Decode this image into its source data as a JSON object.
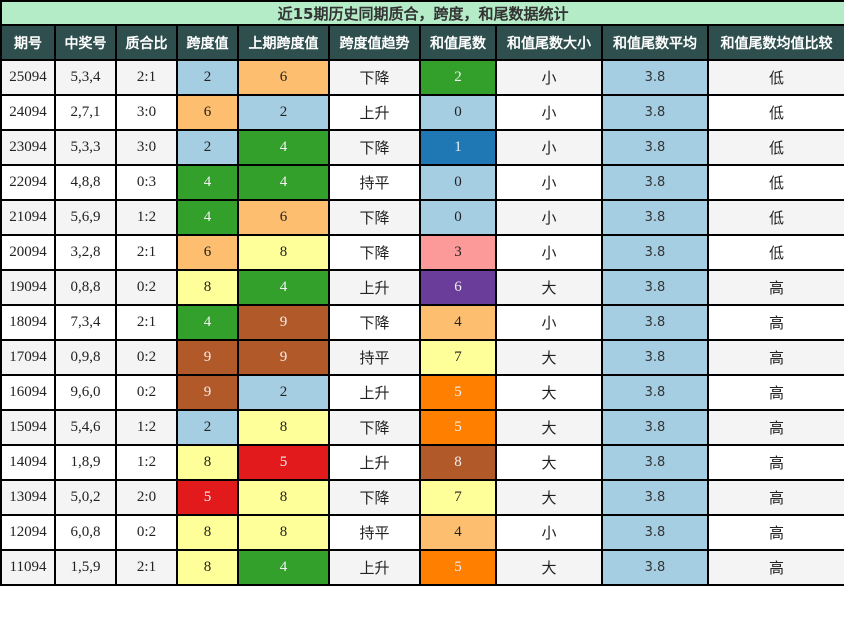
{
  "title": "近15期历史同期质合，跨度，和尾数据统计",
  "headers": [
    "期号",
    "中奖号",
    "质合比",
    "跨度值",
    "上期跨度值",
    "跨度值趋势",
    "和值尾数",
    "和值尾数大小",
    "和值尾数平均",
    "和值尾数均值比较"
  ],
  "digit_colors": {
    "0": "#a6cee3",
    "1": "#1f78b4",
    "2": "#a6cee3",
    "3": "#fb9a99",
    "4": "#33a02c",
    "5": "#e31a1c",
    "6": "#fdbf6f",
    "7": "#ffff99",
    "8": "#ffff99",
    "9": "#b15928"
  },
  "rows": [
    {
      "period": "25094",
      "numbers": "5,3,4",
      "ratio": "2:1",
      "span": "2",
      "prev_span": "6",
      "trend": "下降",
      "tail": "2",
      "tail_size": "小",
      "tail_avg": "3.8",
      "compare": "低"
    },
    {
      "period": "24094",
      "numbers": "2,7,1",
      "ratio": "3:0",
      "span": "6",
      "prev_span": "2",
      "trend": "上升",
      "tail": "0",
      "tail_size": "小",
      "tail_avg": "3.8",
      "compare": "低"
    },
    {
      "period": "23094",
      "numbers": "5,3,3",
      "ratio": "3:0",
      "span": "2",
      "prev_span": "4",
      "trend": "下降",
      "tail": "1",
      "tail_size": "小",
      "tail_avg": "3.8",
      "compare": "低"
    },
    {
      "period": "22094",
      "numbers": "4,8,8",
      "ratio": "0:3",
      "span": "4",
      "prev_span": "4",
      "trend": "持平",
      "tail": "0",
      "tail_size": "小",
      "tail_avg": "3.8",
      "compare": "低"
    },
    {
      "period": "21094",
      "numbers": "5,6,9",
      "ratio": "1:2",
      "span": "4",
      "prev_span": "6",
      "trend": "下降",
      "tail": "0",
      "tail_size": "小",
      "tail_avg": "3.8",
      "compare": "低"
    },
    {
      "period": "20094",
      "numbers": "3,2,8",
      "ratio": "2:1",
      "span": "6",
      "prev_span": "8",
      "trend": "下降",
      "tail": "3",
      "tail_size": "小",
      "tail_avg": "3.8",
      "compare": "低"
    },
    {
      "period": "19094",
      "numbers": "0,8,8",
      "ratio": "0:2",
      "span": "8",
      "prev_span": "4",
      "trend": "上升",
      "tail": "6",
      "tail_size": "大",
      "tail_avg": "3.8",
      "compare": "高"
    },
    {
      "period": "18094",
      "numbers": "7,3,4",
      "ratio": "2:1",
      "span": "4",
      "prev_span": "9",
      "trend": "下降",
      "tail": "4",
      "tail_size": "小",
      "tail_avg": "3.8",
      "compare": "高"
    },
    {
      "period": "17094",
      "numbers": "0,9,8",
      "ratio": "0:2",
      "span": "9",
      "prev_span": "9",
      "trend": "持平",
      "tail": "7",
      "tail_size": "大",
      "tail_avg": "3.8",
      "compare": "高"
    },
    {
      "period": "16094",
      "numbers": "9,6,0",
      "ratio": "0:2",
      "span": "9",
      "prev_span": "2",
      "trend": "上升",
      "tail": "5",
      "tail_size": "大",
      "tail_avg": "3.8",
      "compare": "高"
    },
    {
      "period": "15094",
      "numbers": "5,4,6",
      "ratio": "1:2",
      "span": "2",
      "prev_span": "8",
      "trend": "下降",
      "tail": "5",
      "tail_size": "大",
      "tail_avg": "3.8",
      "compare": "高"
    },
    {
      "period": "14094",
      "numbers": "1,8,9",
      "ratio": "1:2",
      "span": "8",
      "prev_span": "5",
      "trend": "上升",
      "tail": "8",
      "tail_size": "大",
      "tail_avg": "3.8",
      "compare": "高"
    },
    {
      "period": "13094",
      "numbers": "5,0,2",
      "ratio": "2:0",
      "span": "5",
      "prev_span": "8",
      "trend": "下降",
      "tail": "7",
      "tail_size": "大",
      "tail_avg": "3.8",
      "compare": "高"
    },
    {
      "period": "12094",
      "numbers": "6,0,8",
      "ratio": "0:2",
      "span": "8",
      "prev_span": "8",
      "trend": "持平",
      "tail": "4",
      "tail_size": "小",
      "tail_avg": "3.8",
      "compare": "高"
    },
    {
      "period": "11094",
      "numbers": "1,5,9",
      "ratio": "2:1",
      "span": "8",
      "prev_span": "4",
      "trend": "上升",
      "tail": "5",
      "tail_size": "大",
      "tail_avg": "3.8",
      "compare": "高"
    }
  ],
  "cell_colors": {
    "span": [
      "#a6cee3",
      "#fdbf6f",
      "#a6cee3",
      "#33a02c",
      "#33a02c",
      "#fdbf6f",
      "#ffff99",
      "#33a02c",
      "#b15928",
      "#b15928",
      "#a6cee3",
      "#ffff99",
      "#e31a1c",
      "#ffff99",
      "#ffff99"
    ],
    "prev_span": [
      "#fdbf6f",
      "#a6cee3",
      "#33a02c",
      "#33a02c",
      "#fdbf6f",
      "#ffff99",
      "#33a02c",
      "#b15928",
      "#b15928",
      "#a6cee3",
      "#ffff99",
      "#e31a1c",
      "#ffff99",
      "#ffff99",
      "#33a02c"
    ],
    "tail": [
      "#33a02c",
      "#a6cee3",
      "#1f78b4",
      "#a6cee3",
      "#a6cee3",
      "#fb9a99",
      "#6a3d9a",
      "#fdbf6f",
      "#ffff99",
      "#ff7f00",
      "#ff7f00",
      "#b15928",
      "#ffff99",
      "#fdbf6f",
      "#ff7f00"
    ],
    "tail_avg": "#a6cee3"
  },
  "chart_data": {
    "type": "table",
    "title": "近15期历史同期质合，跨度，和尾数据统计",
    "columns": [
      "期号",
      "中奖号",
      "质合比",
      "跨度值",
      "上期跨度值",
      "跨度值趋势",
      "和值尾数",
      "和值尾数大小",
      "和值尾数平均",
      "和值尾数均值比较"
    ],
    "rows": [
      [
        "25094",
        "5,3,4",
        "2:1",
        2,
        6,
        "下降",
        2,
        "小",
        3.8,
        "低"
      ],
      [
        "24094",
        "2,7,1",
        "3:0",
        6,
        2,
        "上升",
        0,
        "小",
        3.8,
        "低"
      ],
      [
        "23094",
        "5,3,3",
        "3:0",
        2,
        4,
        "下降",
        1,
        "小",
        3.8,
        "低"
      ],
      [
        "22094",
        "4,8,8",
        "0:3",
        4,
        4,
        "持平",
        0,
        "小",
        3.8,
        "低"
      ],
      [
        "21094",
        "5,6,9",
        "1:2",
        4,
        6,
        "下降",
        0,
        "小",
        3.8,
        "低"
      ],
      [
        "20094",
        "3,2,8",
        "2:1",
        6,
        8,
        "下降",
        3,
        "小",
        3.8,
        "低"
      ],
      [
        "19094",
        "0,8,8",
        "0:2",
        8,
        4,
        "上升",
        6,
        "大",
        3.8,
        "高"
      ],
      [
        "18094",
        "7,3,4",
        "2:1",
        4,
        9,
        "下降",
        4,
        "小",
        3.8,
        "高"
      ],
      [
        "17094",
        "0,9,8",
        "0:2",
        9,
        9,
        "持平",
        7,
        "大",
        3.8,
        "高"
      ],
      [
        "16094",
        "9,6,0",
        "0:2",
        9,
        2,
        "上升",
        5,
        "大",
        3.8,
        "高"
      ],
      [
        "15094",
        "5,4,6",
        "1:2",
        2,
        8,
        "下降",
        5,
        "大",
        3.8,
        "高"
      ],
      [
        "14094",
        "1,8,9",
        "1:2",
        8,
        5,
        "上升",
        8,
        "大",
        3.8,
        "高"
      ],
      [
        "13094",
        "5,0,2",
        "2:0",
        5,
        8,
        "下降",
        7,
        "大",
        3.8,
        "高"
      ],
      [
        "12094",
        "6,0,8",
        "0:2",
        8,
        8,
        "持平",
        4,
        "小",
        3.8,
        "高"
      ],
      [
        "11094",
        "1,5,9",
        "2:1",
        8,
        4,
        "上升",
        5,
        "大",
        3.8,
        "高"
      ]
    ]
  }
}
